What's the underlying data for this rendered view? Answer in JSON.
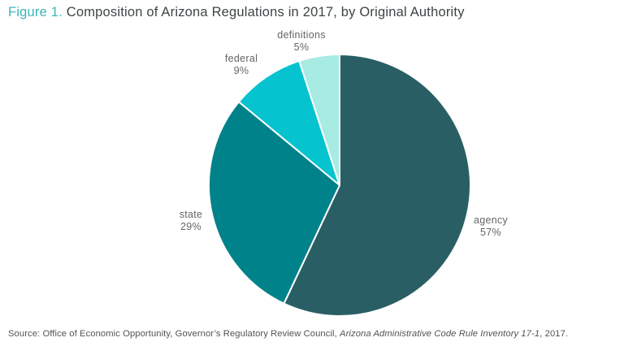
{
  "header": {
    "figure_label": "Figure 1.",
    "title": " Composition of Arizona Regulations in 2017, by Original Authority"
  },
  "chart_data": {
    "type": "pie",
    "title": "Composition of Arizona Regulations in 2017, by Original Authority",
    "start_angle_deg": 0,
    "direction": "clockwise",
    "legend_position": "labels-around-pie",
    "slices": [
      {
        "label": "agency",
        "value": 57,
        "percent_label": "57%",
        "color": "#295f64"
      },
      {
        "label": "state",
        "value": 29,
        "percent_label": "29%",
        "color": "#00828a"
      },
      {
        "label": "federal",
        "value": 9,
        "percent_label": "9%",
        "color": "#05c3cf"
      },
      {
        "label": "definitions",
        "value": 5,
        "percent_label": "5%",
        "color": "#a7ebe3"
      }
    ],
    "accent_colors": {
      "figure_label_teal": "#3bb6b8",
      "title_gray": "#3e4446",
      "label_gray": "#646567",
      "slice_stroke": "#ffffff"
    }
  },
  "source": {
    "prefix": "Source: Office of Economic Opportunity, Governor’s Regulatory Review Council, ",
    "italic": "Arizona Administrative Code Rule Inventory 17-1",
    "suffix": ", 2017."
  }
}
